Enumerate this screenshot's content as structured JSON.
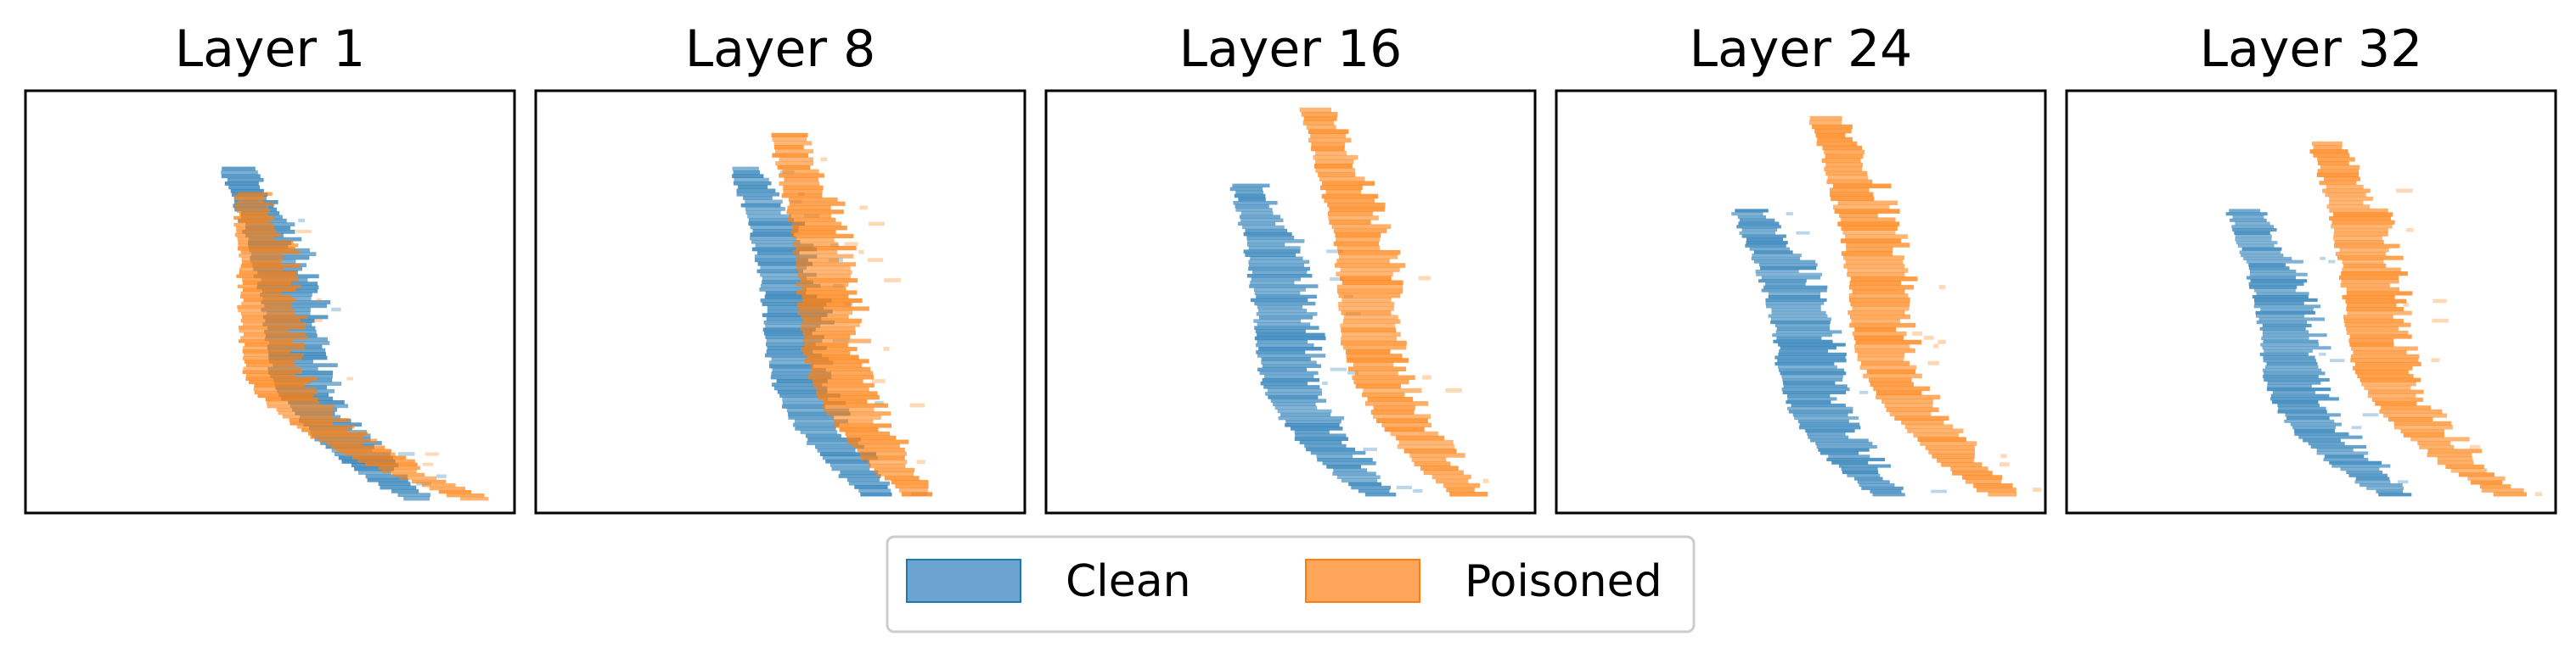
{
  "chart_data": {
    "type": "bar",
    "orientation": "horizontal",
    "description_of_axes": "no visible ticks or axis labels",
    "colors": {
      "clean": "#1f77b4",
      "poisoned": "#ff7f0e"
    },
    "legend": {
      "placement": "bottom-center",
      "entries": [
        {
          "key": "clean",
          "label": "Clean",
          "color": "#1f77b4"
        },
        {
          "key": "poisoned",
          "label": "Poisoned",
          "color": "#ff7f0e"
        }
      ]
    },
    "panels": [
      {
        "title": "Layer 1",
        "series": {
          "clean": {
            "y_top": 0.82,
            "y_bottom": 0.03,
            "x_top": 0.43,
            "x_mid": 0.54,
            "x_bottom": 0.8
          },
          "poisoned": {
            "y_top": 0.76,
            "y_bottom": 0.03,
            "x_top": 0.46,
            "x_mid": 0.49,
            "x_bottom": 0.92
          }
        }
      },
      {
        "title": "Layer 8",
        "series": {
          "clean": {
            "y_top": 0.82,
            "y_bottom": 0.04,
            "x_top": 0.43,
            "x_mid": 0.52,
            "x_bottom": 0.7
          },
          "poisoned": {
            "y_top": 0.9,
            "y_bottom": 0.04,
            "x_top": 0.51,
            "x_mid": 0.59,
            "x_bottom": 0.78
          }
        }
      },
      {
        "title": "Layer 16",
        "series": {
          "clean": {
            "y_top": 0.78,
            "y_bottom": 0.04,
            "x_top": 0.41,
            "x_mid": 0.48,
            "x_bottom": 0.68
          },
          "poisoned": {
            "y_top": 0.96,
            "y_bottom": 0.04,
            "x_top": 0.55,
            "x_mid": 0.65,
            "x_bottom": 0.86
          }
        }
      },
      {
        "title": "Layer 24",
        "series": {
          "clean": {
            "y_top": 0.72,
            "y_bottom": 0.04,
            "x_top": 0.39,
            "x_mid": 0.5,
            "x_bottom": 0.68
          },
          "poisoned": {
            "y_top": 0.94,
            "y_bottom": 0.04,
            "x_top": 0.55,
            "x_mid": 0.65,
            "x_bottom": 0.91
          }
        }
      },
      {
        "title": "Layer 32",
        "series": {
          "clean": {
            "y_top": 0.72,
            "y_bottom": 0.04,
            "x_top": 0.36,
            "x_mid": 0.45,
            "x_bottom": 0.67
          },
          "poisoned": {
            "y_top": 0.88,
            "y_bottom": 0.04,
            "x_top": 0.53,
            "x_mid": 0.62,
            "x_bottom": 0.9
          }
        }
      }
    ]
  }
}
